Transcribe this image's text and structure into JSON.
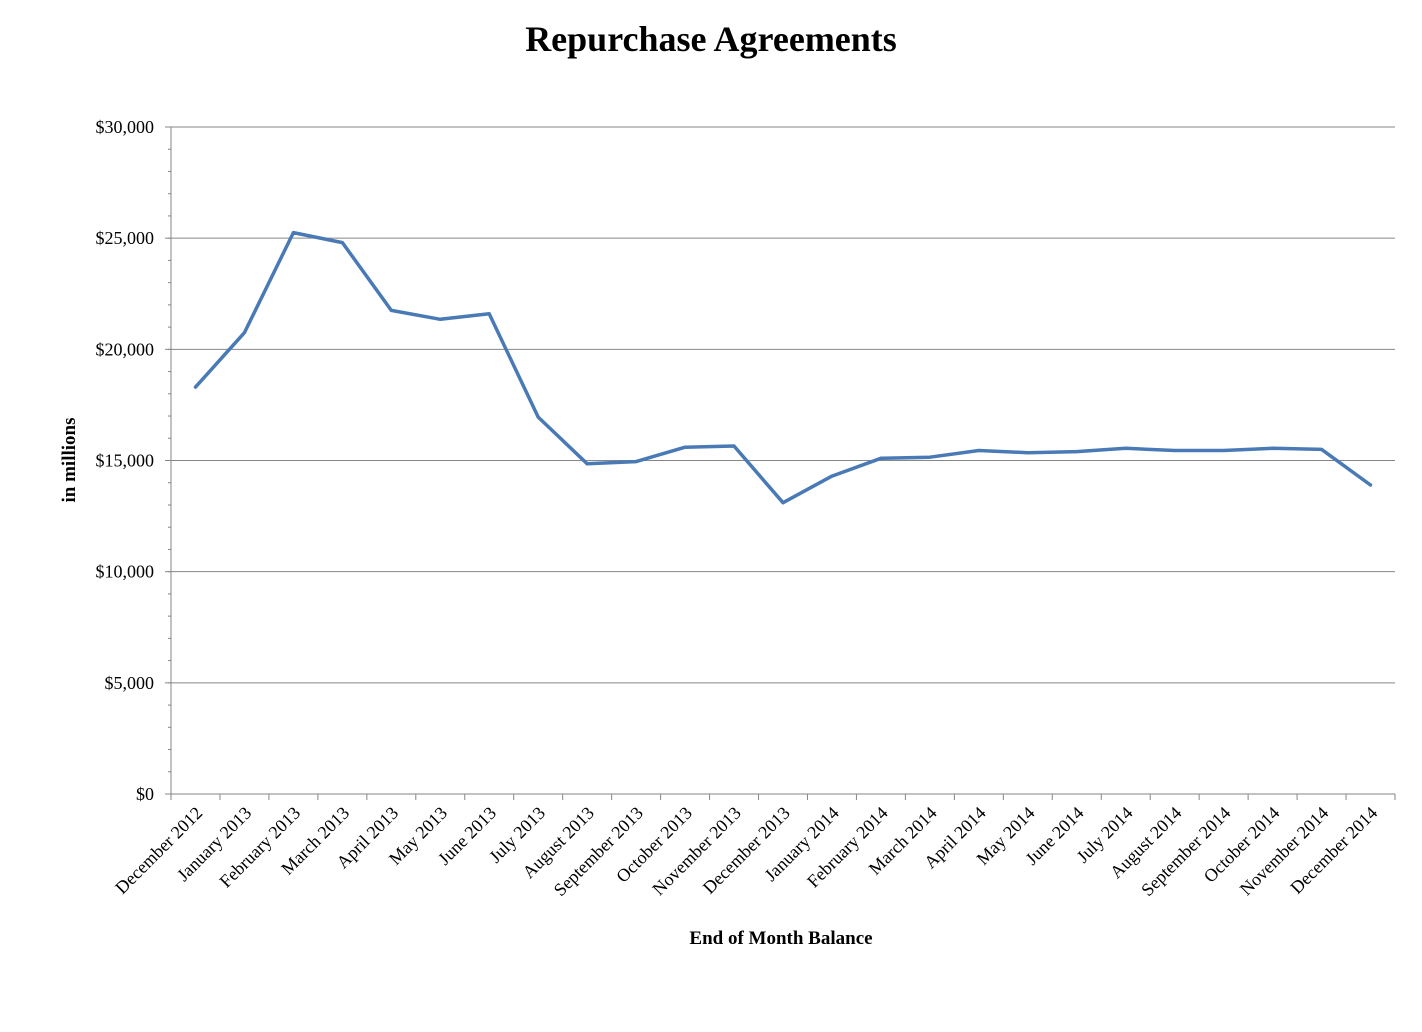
{
  "chart_data": {
    "type": "line",
    "title": "Repurchase Agreements",
    "xlabel": "End of Month Balance",
    "ylabel": "in millions",
    "ylim": [
      0,
      30000
    ],
    "y_ticks": [
      0,
      5000,
      10000,
      15000,
      20000,
      25000,
      30000
    ],
    "y_tick_labels": [
      "$0",
      "$5,000",
      "$10,000",
      "$15,000",
      "$20,000",
      "$25,000",
      "$30,000"
    ],
    "grid": true,
    "legend": "none",
    "categories": [
      "December 2012",
      "January 2013",
      "February 2013",
      "March 2013",
      "April 2013",
      "May 2013",
      "June 2013",
      "July 2013",
      "August 2013",
      "September 2013",
      "October 2013",
      "November 2013",
      "December 2013",
      "January 2014",
      "February 2014",
      "March 2014",
      "April 2014",
      "May 2014",
      "June 2014",
      "July 2014",
      "August 2014",
      "September 2014",
      "October 2014",
      "November 2014",
      "December 2014"
    ],
    "series": [
      {
        "color": "#4a7ab5",
        "values": [
          18300,
          20750,
          25250,
          24800,
          21750,
          21350,
          21600,
          16950,
          14850,
          14950,
          15600,
          15650,
          13100,
          14300,
          15100,
          15150,
          15450,
          15350,
          15400,
          15550,
          15450,
          15450,
          15550,
          15500,
          13900
        ]
      }
    ]
  }
}
